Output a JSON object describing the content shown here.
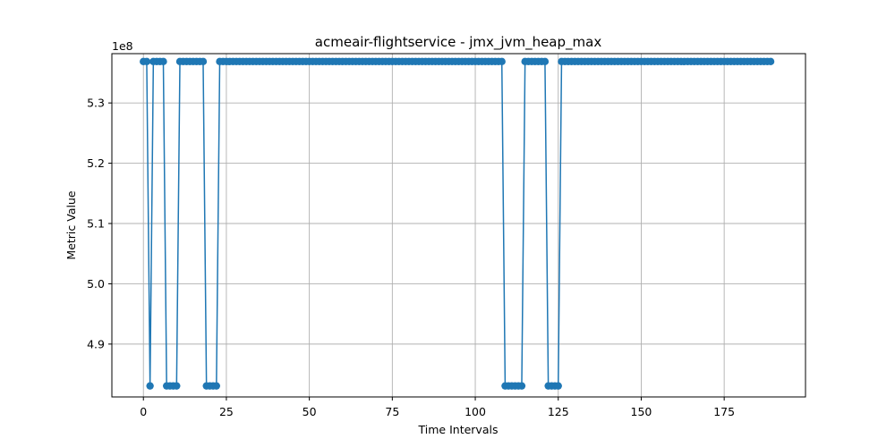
{
  "chart_data": {
    "type": "line",
    "title": "acmeair-flightservice - jmx_jvm_heap_max",
    "xlabel": "Time Intervals",
    "ylabel": "Metric Value",
    "y_offset_label": "1e8",
    "xlim": [
      -9.5,
      199.5
    ],
    "ylim": [
      4.8123,
      5.3818
    ],
    "x_ticks": [
      0,
      25,
      50,
      75,
      100,
      125,
      150,
      175
    ],
    "x_tick_labels": [
      "0",
      "25",
      "50",
      "75",
      "100",
      "125",
      "150",
      "175"
    ],
    "y_ticks": [
      4.9,
      5.0,
      5.1,
      5.2,
      5.3
    ],
    "y_tick_labels": [
      "4.9",
      "5.0",
      "5.1",
      "5.2",
      "5.3"
    ],
    "grid": true,
    "series": [
      {
        "color": "#1f77b4",
        "high_value": 5.3687,
        "low_value": 4.8306,
        "count": 190,
        "low_ranges": [
          [
            2,
            2
          ],
          [
            7,
            10
          ],
          [
            19,
            22
          ],
          [
            109,
            114
          ],
          [
            122,
            125
          ]
        ]
      }
    ]
  }
}
